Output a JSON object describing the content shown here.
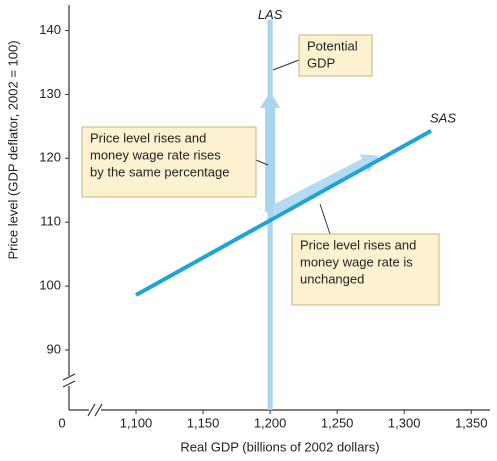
{
  "chart_data": {
    "type": "line",
    "x_label": "Real GDP (billions of 2002 dollars)",
    "y_label": "Price level (GDP deflator, 2002 = 100)",
    "origin_label": "0",
    "xlim": [
      1050,
      1364
    ],
    "ylim": [
      80.6,
      144
    ],
    "xticks": [
      {
        "value": 1100,
        "label": "1,100"
      },
      {
        "value": 1150,
        "label": "1,150"
      },
      {
        "value": 1200,
        "label": "1,200"
      },
      {
        "value": 1250,
        "label": "1,250"
      },
      {
        "value": 1300,
        "label": "1,300"
      },
      {
        "value": 1350,
        "label": "1,350"
      }
    ],
    "yticks": [
      90,
      100,
      110,
      120,
      130,
      140
    ],
    "series": [
      {
        "name": "LAS",
        "color": "#a9d4ee",
        "x": [
          1200,
          1200
        ],
        "values": [
          80.6,
          141.7
        ]
      },
      {
        "name": "SAS",
        "color": "#1fa3d8",
        "x": [
          1100,
          1320
        ],
        "values": [
          98.6,
          124.3
        ]
      }
    ],
    "arrows": [
      {
        "color": "#a9d4ee",
        "x": [
          1200,
          1200
        ],
        "y": [
          111.6,
          130.4
        ]
      },
      {
        "color": "#b4dbf2",
        "x": [
          1200,
          1281
        ],
        "y": [
          111.6,
          120.4
        ]
      }
    ],
    "annotations": [
      {
        "lines": [
          "Potential",
          "GDP"
        ]
      },
      {
        "lines": [
          "Price level rises and",
          "money wage rate rises",
          "by the same percentage"
        ]
      },
      {
        "lines": [
          "Price level rises and",
          "money wage rate is",
          "unchanged"
        ]
      }
    ]
  }
}
